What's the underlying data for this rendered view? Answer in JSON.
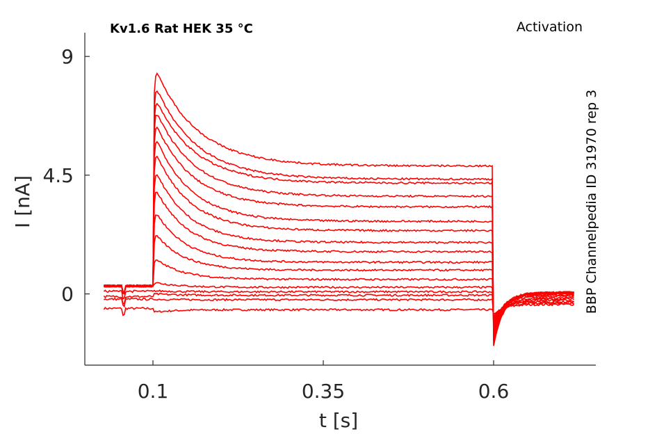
{
  "chart_data": {
    "type": "line",
    "title_left": "Kv1.6  Rat  HEK  35 °C",
    "title_right": "Activation",
    "side_note": "BBP Channelpedia ID 31970 rep 3",
    "xlabel": "t [s]",
    "ylabel": "I [nA]",
    "xlim": [
      0.0,
      0.75
    ],
    "ylim": [
      -2.7,
      9.9
    ],
    "x_ticks": [
      0.1,
      0.35,
      0.6
    ],
    "x_tick_labels": [
      "0.1",
      "0.35",
      "0.6"
    ],
    "y_ticks": [
      0,
      4.5,
      9
    ],
    "y_tick_labels": [
      "0",
      "4.5",
      "9"
    ],
    "grid": false,
    "line_color": "#ff0000",
    "protocol": {
      "pulse_on": 0.1,
      "pulse_off": 0.6,
      "end": 0.72,
      "start": 0.028
    },
    "series": [
      {
        "baseline": -0.55,
        "peak": -0.7,
        "steady": -0.6,
        "tail": -0.4
      },
      {
        "baseline": -0.2,
        "peak": -0.2,
        "steady": -0.22,
        "tail": -0.35
      },
      {
        "baseline": -0.1,
        "peak": 0.0,
        "steady": -0.05,
        "tail": -0.3
      },
      {
        "baseline": 0.1,
        "peak": 0.12,
        "steady": 0.08,
        "tail": -0.25
      },
      {
        "baseline": 0.3,
        "peak": 0.45,
        "steady": 0.25,
        "tail": -0.2
      },
      {
        "baseline": 0.3,
        "peak": 1.4,
        "steady": 0.55,
        "tail": -0.15
      },
      {
        "baseline": 0.3,
        "peak": 2.4,
        "steady": 0.9,
        "tail": -0.1
      },
      {
        "baseline": 0.3,
        "peak": 3.3,
        "steady": 1.2,
        "tail": -0.05
      },
      {
        "baseline": 0.3,
        "peak": 4.2,
        "steady": 1.6,
        "tail": 0.0
      },
      {
        "baseline": 0.3,
        "peak": 4.9,
        "steady": 1.95,
        "tail": 0.0
      },
      {
        "baseline": 0.3,
        "peak": 5.6,
        "steady": 2.4,
        "tail": 0.05
      },
      {
        "baseline": 0.3,
        "peak": 6.2,
        "steady": 2.75,
        "tail": 0.05
      },
      {
        "baseline": 0.3,
        "peak": 6.7,
        "steady": 3.3,
        "tail": 0.05
      },
      {
        "baseline": 0.3,
        "peak": 7.2,
        "steady": 3.7,
        "tail": 0.05
      },
      {
        "baseline": 0.3,
        "peak": 7.6,
        "steady": 4.2,
        "tail": 0.05
      },
      {
        "baseline": 0.3,
        "peak": 8.1,
        "steady": 4.35,
        "tail": 0.05
      },
      {
        "baseline": 0.3,
        "peak": 8.75,
        "steady": 4.85,
        "tail": 0.05
      }
    ]
  }
}
